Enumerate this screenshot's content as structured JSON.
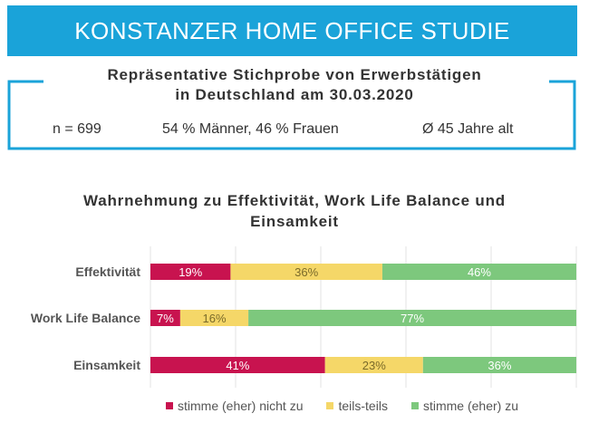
{
  "header": {
    "title": "KONSTANZER HOME OFFICE STUDIE"
  },
  "sample": {
    "title_line1": "Repräsentative Stichprobe von Erwerbstätigen",
    "title_line2": "in Deutschland am 30.03.2020",
    "n": "n = 699",
    "gender": "54 % Männer, 46 % Frauen",
    "age": "Ø 45 Jahre alt"
  },
  "colors": {
    "banner": "#1aa3d9",
    "nicht_zu": "#c8134f",
    "teils": "#f5d768",
    "zu": "#7dc87d"
  },
  "chart_data": {
    "type": "bar",
    "orientation": "horizontal",
    "stacked": true,
    "title_line1": "Wahrnehmung zu Effektivität, Work Life Balance und",
    "title_line2": "Einsamkeit",
    "categories": [
      "Effektivität",
      "Work Life Balance",
      "Einsamkeit"
    ],
    "series": [
      {
        "name": "stimme (eher) nicht zu",
        "values": [
          19,
          7,
          41
        ],
        "labels": [
          "19%",
          "7%",
          "41%"
        ]
      },
      {
        "name": "teils-teils",
        "values": [
          36,
          16,
          23
        ],
        "labels": [
          "36%",
          "16%",
          "23%"
        ]
      },
      {
        "name": "stimme (eher) zu",
        "values": [
          46,
          77,
          36
        ],
        "labels": [
          "46%",
          "77%",
          "36%"
        ]
      }
    ],
    "grid": true,
    "legend": "bottom"
  }
}
